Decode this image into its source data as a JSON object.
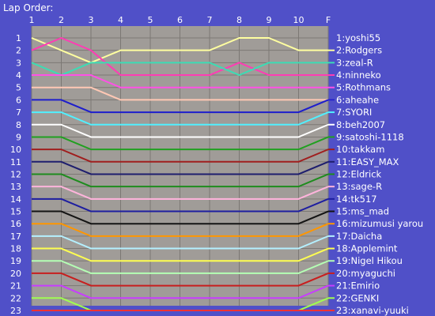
{
  "chart_data": {
    "type": "line",
    "title": "Lap Order:",
    "x_ticks": [
      "1",
      "2",
      "3",
      "4",
      "5",
      "6",
      "7",
      "8",
      "9",
      "10",
      "F"
    ],
    "y_ticks": [
      "1",
      "2",
      "3",
      "4",
      "5",
      "6",
      "7",
      "8",
      "9",
      "10",
      "11",
      "12",
      "13",
      "14",
      "15",
      "16",
      "17",
      "18",
      "19",
      "20",
      "21",
      "22",
      "23"
    ],
    "ylim": [
      1,
      23
    ],
    "y_inverted": true,
    "grid": true,
    "background": "#a09c98",
    "grid_color": "#7c7874",
    "series": [
      {
        "name": "1:yoshi55",
        "color": "#ffffa0",
        "values": [
          1,
          2,
          3,
          2,
          2,
          2,
          2,
          1,
          1,
          2,
          2
        ]
      },
      {
        "name": "2:Rodgers",
        "color": "#ff3cb4",
        "values": [
          2,
          1,
          2,
          4,
          4,
          4,
          4,
          3,
          4,
          4,
          4
        ]
      },
      {
        "name": "3:zeal-R",
        "color": "#3cdcb4",
        "values": [
          3,
          4,
          3,
          3,
          3,
          3,
          3,
          4,
          3,
          3,
          3
        ]
      },
      {
        "name": "4:ninneko",
        "color": "#ff50e6",
        "values": [
          4,
          4,
          4,
          5,
          5,
          5,
          5,
          5,
          5,
          5,
          5
        ]
      },
      {
        "name": "5:Rothmans",
        "color": "#ffc8b4",
        "values": [
          5,
          5,
          5,
          6,
          6,
          6,
          6,
          6,
          6,
          6,
          6
        ]
      },
      {
        "name": "6:aheahe",
        "color": "#1e1ecc",
        "values": [
          6,
          6,
          7,
          7,
          7,
          7,
          7,
          7,
          7,
          7,
          6
        ]
      },
      {
        "name": "7:SYORI",
        "color": "#50f0ff",
        "values": [
          7,
          7,
          8,
          8,
          8,
          8,
          8,
          8,
          8,
          8,
          7
        ]
      },
      {
        "name": "8:beh2007",
        "color": "#ffffff",
        "values": [
          8,
          8,
          9,
          9,
          9,
          9,
          9,
          9,
          9,
          9,
          8
        ]
      },
      {
        "name": "9:satoshi-1118",
        "color": "#20a020",
        "values": [
          9,
          9,
          10,
          10,
          10,
          10,
          10,
          10,
          10,
          10,
          9
        ]
      },
      {
        "name": "10:takkam",
        "color": "#a01e1e",
        "values": [
          10,
          10,
          11,
          11,
          11,
          11,
          11,
          11,
          11,
          11,
          10
        ]
      },
      {
        "name": "11:EASY_MAX",
        "color": "#1e1e6e",
        "values": [
          11,
          11,
          12,
          12,
          12,
          12,
          12,
          12,
          12,
          12,
          11
        ]
      },
      {
        "name": "12:Eldrick",
        "color": "#1e8c1e",
        "values": [
          12,
          12,
          13,
          13,
          13,
          13,
          13,
          13,
          13,
          13,
          12
        ]
      },
      {
        "name": "13:sage-R",
        "color": "#ffb4dc",
        "values": [
          13,
          13,
          14,
          14,
          14,
          14,
          14,
          14,
          14,
          14,
          13
        ]
      },
      {
        "name": "14:tk517",
        "color": "#1e1ea0",
        "values": [
          14,
          14,
          15,
          15,
          15,
          15,
          15,
          15,
          15,
          15,
          14
        ]
      },
      {
        "name": "15:ms_mad",
        "color": "#141414",
        "values": [
          15,
          15,
          16,
          16,
          16,
          16,
          16,
          16,
          16,
          16,
          15
        ]
      },
      {
        "name": "16:mizumusi yarou",
        "color": "#ff9600",
        "values": [
          16,
          16,
          17,
          17,
          17,
          17,
          17,
          17,
          17,
          17,
          16
        ]
      },
      {
        "name": "17:Daicha",
        "color": "#b4f0ff",
        "values": [
          17,
          17,
          18,
          18,
          18,
          18,
          18,
          18,
          18,
          18,
          17
        ]
      },
      {
        "name": "18:Applemint",
        "color": "#ffff50",
        "values": [
          18,
          18,
          19,
          19,
          19,
          19,
          19,
          19,
          19,
          19,
          18
        ]
      },
      {
        "name": "19:Nigel Hikou",
        "color": "#b4ffb4",
        "values": [
          19,
          19,
          20,
          20,
          20,
          20,
          20,
          20,
          20,
          20,
          19
        ]
      },
      {
        "name": "20:myaguchi",
        "color": "#c81e1e",
        "values": [
          20,
          20,
          21,
          21,
          21,
          21,
          21,
          21,
          21,
          21,
          20
        ]
      },
      {
        "name": "21:Emirio",
        "color": "#c83cff",
        "values": [
          21,
          21,
          22,
          22,
          22,
          22,
          22,
          22,
          22,
          22,
          21
        ]
      },
      {
        "name": "22:GENKI",
        "color": "#a0ff50",
        "values": [
          22,
          22,
          23,
          23,
          23,
          23,
          23,
          23,
          23,
          23,
          22
        ]
      },
      {
        "name": "23:xanavi-yuuki",
        "color": "#ff3232",
        "values": [
          23,
          23,
          23,
          23,
          23,
          23,
          23,
          23,
          23,
          23,
          23
        ]
      }
    ]
  }
}
